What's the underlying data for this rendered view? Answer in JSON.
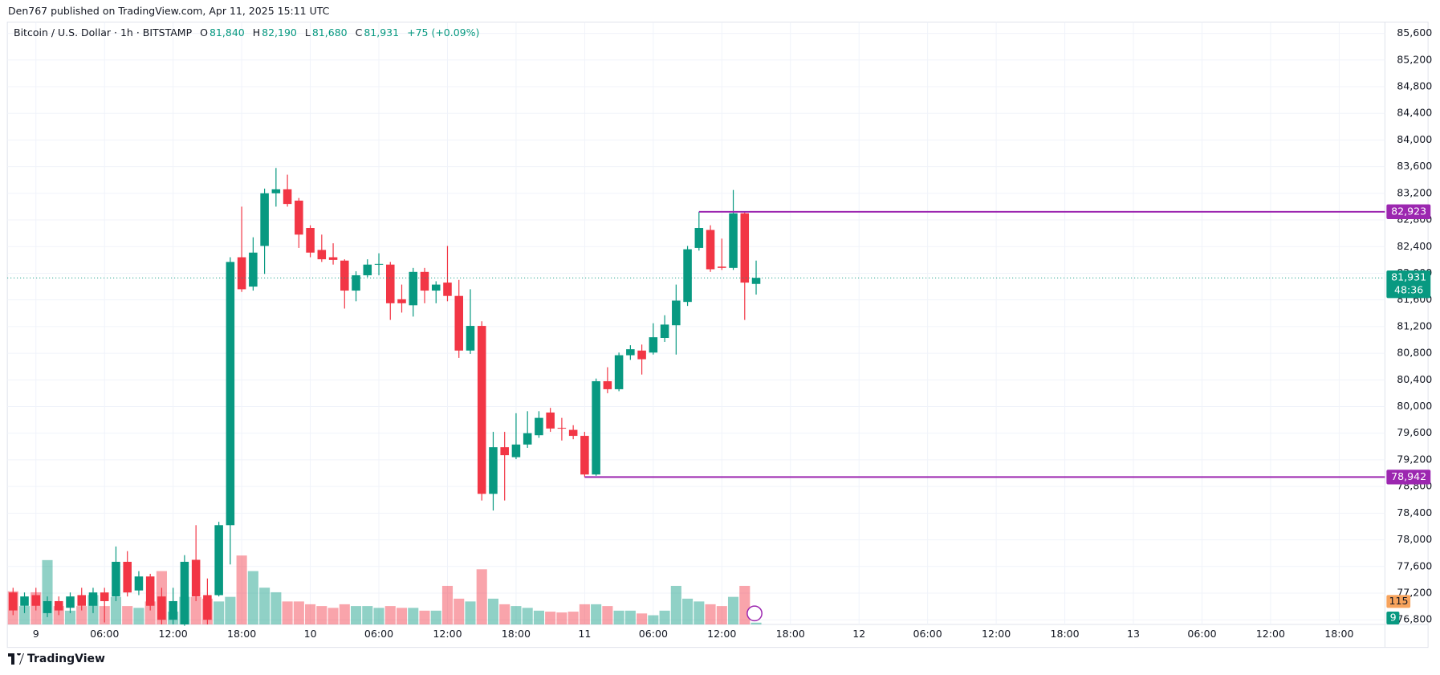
{
  "header": "Den767 published on TradingView.com, Apr 11, 2025 15:11 UTC",
  "footer": "TradingView",
  "chart_data": {
    "type": "candlestick",
    "symbol": "Bitcoin / U.S. Dollar · 1h · BITSTAMP",
    "legend": {
      "o": "O",
      "open": "81,840",
      "h": "H",
      "high": "82,190",
      "l": "L",
      "low": "81,680",
      "c": "C",
      "close": "81,931",
      "change": "+75 (+0.09%)"
    },
    "up_color": "#089981",
    "down_color": "#f23645",
    "open": [
      77210,
      77010,
      77170,
      76900,
      77080,
      76980,
      77170,
      77010,
      77210,
      77150,
      77670,
      77240,
      77450,
      77150,
      76800,
      76730,
      77700,
      77170,
      77170,
      78220,
      82240,
      81800,
      82410,
      83200,
      83260,
      83090,
      82680,
      82350,
      82240,
      82190,
      81740,
      81970,
      82130,
      82130,
      81610,
      81520,
      82020,
      81740,
      81860,
      81660,
      80840,
      81210,
      78690,
      79390,
      79240,
      79430,
      79570,
      79910,
      79680,
      79650,
      79560,
      78980,
      80380,
      80260,
      80770,
      80840,
      80810,
      81030,
      81220,
      81570,
      82380,
      82650,
      82100,
      82080,
      82900,
      81840
    ],
    "high": [
      77280,
      77210,
      77280,
      77150,
      77150,
      77210,
      77280,
      77280,
      77280,
      77900,
      77830,
      77530,
      77490,
      77280,
      77280,
      77770,
      78220,
      77420,
      78270,
      82240,
      83000,
      82540,
      83270,
      83580,
      83480,
      83130,
      82720,
      82580,
      82450,
      82210,
      82030,
      82210,
      82300,
      82170,
      81830,
      82080,
      82080,
      81880,
      82410,
      81900,
      81760,
      81280,
      79620,
      79620,
      79900,
      79930,
      79930,
      79980,
      79830,
      79720,
      79620,
      80420,
      80590,
      80810,
      80920,
      80930,
      81250,
      81370,
      81830,
      82410,
      82923,
      82720,
      82520,
      83250,
      82920,
      82190
    ],
    "low": [
      76870,
      76900,
      76940,
      76840,
      76870,
      76900,
      76940,
      76900,
      76760,
      77080,
      77150,
      77170,
      76940,
      76730,
      76730,
      76710,
      77080,
      76730,
      77150,
      77630,
      81720,
      81740,
      81990,
      83000,
      83000,
      82380,
      82240,
      82170,
      82130,
      81470,
      81580,
      81940,
      81970,
      81300,
      81410,
      81350,
      81550,
      81550,
      81580,
      80730,
      80790,
      78590,
      78440,
      78590,
      79210,
      79380,
      79530,
      79620,
      79490,
      79510,
      78940,
      78960,
      80200,
      80230,
      80700,
      80480,
      80780,
      80970,
      80780,
      81510,
      82340,
      82020,
      82050,
      82050,
      81300,
      81680
    ],
    "close": [
      76940,
      77150,
      77010,
      77080,
      76940,
      77150,
      77010,
      77210,
      77080,
      77670,
      77210,
      77450,
      77010,
      76800,
      77080,
      77670,
      77150,
      76800,
      78220,
      82170,
      81760,
      82310,
      83200,
      83260,
      83040,
      82580,
      82310,
      82210,
      82200,
      81740,
      81970,
      82130,
      82140,
      81550,
      81550,
      82020,
      81740,
      81830,
      81660,
      80840,
      81210,
      78690,
      79390,
      79270,
      79430,
      79600,
      79830,
      79670,
      79670,
      79560,
      78980,
      80380,
      80260,
      80770,
      80860,
      80710,
      81040,
      81230,
      81590,
      82360,
      82680,
      82060,
      82080,
      82900,
      81860,
      81931
    ],
    "volume": [
      166,
      92,
      161,
      322,
      92,
      69,
      92,
      147,
      92,
      138,
      92,
      83,
      115,
      267,
      64,
      138,
      138,
      129,
      115,
      138,
      345,
      267,
      184,
      161,
      115,
      115,
      101,
      92,
      83,
      101,
      92,
      92,
      83,
      92,
      83,
      83,
      69,
      69,
      193,
      129,
      115,
      276,
      129,
      101,
      92,
      83,
      69,
      64,
      60,
      64,
      101,
      101,
      92,
      69,
      69,
      55,
      46,
      69,
      193,
      129,
      115,
      101,
      92,
      138,
      193,
      9
    ],
    "volume_ma": {
      "value": 115,
      "color": "#f7a35c"
    },
    "xlim": [
      -0.5,
      120
    ],
    "xticks": [
      {
        "value": 2,
        "label": "9"
      },
      {
        "value": 8,
        "label": "06:00"
      },
      {
        "value": 14,
        "label": "12:00"
      },
      {
        "value": 20,
        "label": "18:00"
      },
      {
        "value": 26,
        "label": "10"
      },
      {
        "value": 32,
        "label": "06:00"
      },
      {
        "value": 38,
        "label": "12:00"
      },
      {
        "value": 44,
        "label": "18:00"
      },
      {
        "value": 50,
        "label": "11"
      },
      {
        "value": 56,
        "label": "06:00"
      },
      {
        "value": 62,
        "label": "12:00"
      },
      {
        "value": 68,
        "label": "18:00"
      },
      {
        "value": 74,
        "label": "12"
      },
      {
        "value": 80,
        "label": "06:00"
      },
      {
        "value": 86,
        "label": "12:00"
      },
      {
        "value": 92,
        "label": "18:00"
      },
      {
        "value": 98,
        "label": "13"
      },
      {
        "value": 104,
        "label": "06:00"
      },
      {
        "value": 110,
        "label": "12:00"
      },
      {
        "value": 116,
        "label": "18:00"
      }
    ],
    "ylim": [
      76730,
      85770
    ],
    "yticks": [
      {
        "value": 76800,
        "label": "76,800"
      },
      {
        "value": 77200,
        "label": "77,200"
      },
      {
        "value": 77600,
        "label": "77,600"
      },
      {
        "value": 78000,
        "label": "78,000"
      },
      {
        "value": 78400,
        "label": "78,400"
      },
      {
        "value": 78800,
        "label": "78,800"
      },
      {
        "value": 79200,
        "label": "79,200"
      },
      {
        "value": 79600,
        "label": "79,600"
      },
      {
        "value": 80000,
        "label": "80,000"
      },
      {
        "value": 80400,
        "label": "80,400"
      },
      {
        "value": 80800,
        "label": "80,800"
      },
      {
        "value": 81200,
        "label": "81,200"
      },
      {
        "value": 81600,
        "label": "81,600"
      },
      {
        "value": 82000,
        "label": "82,000"
      },
      {
        "value": 82400,
        "label": "82,400"
      },
      {
        "value": 82800,
        "label": "82,800"
      },
      {
        "value": 83200,
        "label": "83,200"
      },
      {
        "value": 83600,
        "label": "83,600"
      },
      {
        "value": 84000,
        "label": "84,000"
      },
      {
        "value": 84400,
        "label": "84,400"
      },
      {
        "value": 84800,
        "label": "84,800"
      },
      {
        "value": 85200,
        "label": "85,200"
      },
      {
        "value": 85600,
        "label": "85,600"
      }
    ],
    "grid": true,
    "hlines": [
      {
        "value": 82923,
        "label": "82,923",
        "x": 60,
        "color": "#9c27b0"
      },
      {
        "value": 78942,
        "label": "78,942",
        "x": 50,
        "color": "#9c27b0"
      }
    ],
    "last": {
      "value": 81931,
      "label": "81,931",
      "countdown": "48:36"
    }
  }
}
